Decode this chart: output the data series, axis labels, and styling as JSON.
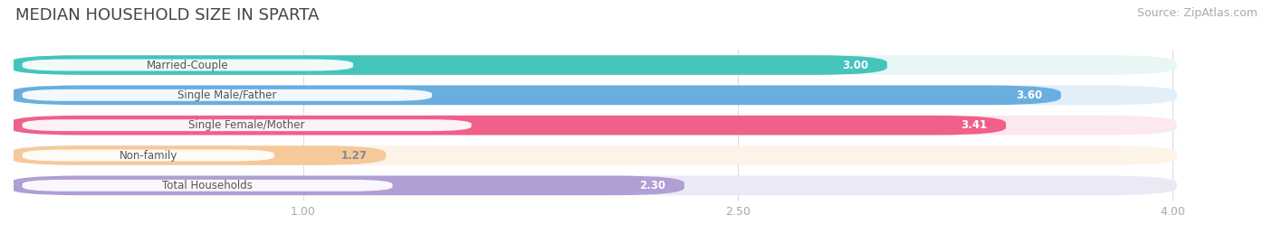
{
  "title": "MEDIAN HOUSEHOLD SIZE IN SPARTA",
  "source": "Source: ZipAtlas.com",
  "categories": [
    "Married-Couple",
    "Single Male/Father",
    "Single Female/Mother",
    "Non-family",
    "Total Households"
  ],
  "values": [
    3.0,
    3.6,
    3.41,
    1.27,
    2.3
  ],
  "bar_colors": [
    "#45c4bc",
    "#6aaee0",
    "#f0608a",
    "#f5c99a",
    "#b09ed4"
  ],
  "bar_bg_colors": [
    "#e8f6f5",
    "#e2eef8",
    "#fce8ef",
    "#fdf3e7",
    "#ece8f5"
  ],
  "value_label_colors": [
    "#ffffff",
    "#ffffff",
    "#ffffff",
    "#888888",
    "#ffffff"
  ],
  "xlim": [
    0,
    4.3
  ],
  "xmin": 0,
  "xticks": [
    1.0,
    2.5,
    4.0
  ],
  "title_fontsize": 13,
  "source_fontsize": 9,
  "bar_height": 0.62,
  "figsize": [
    14.06,
    2.69
  ],
  "dpi": 100,
  "bg_color": "#ffffff",
  "grid_color": "#dddddd",
  "label_box_color": "#ffffff",
  "label_text_color": "#555555"
}
